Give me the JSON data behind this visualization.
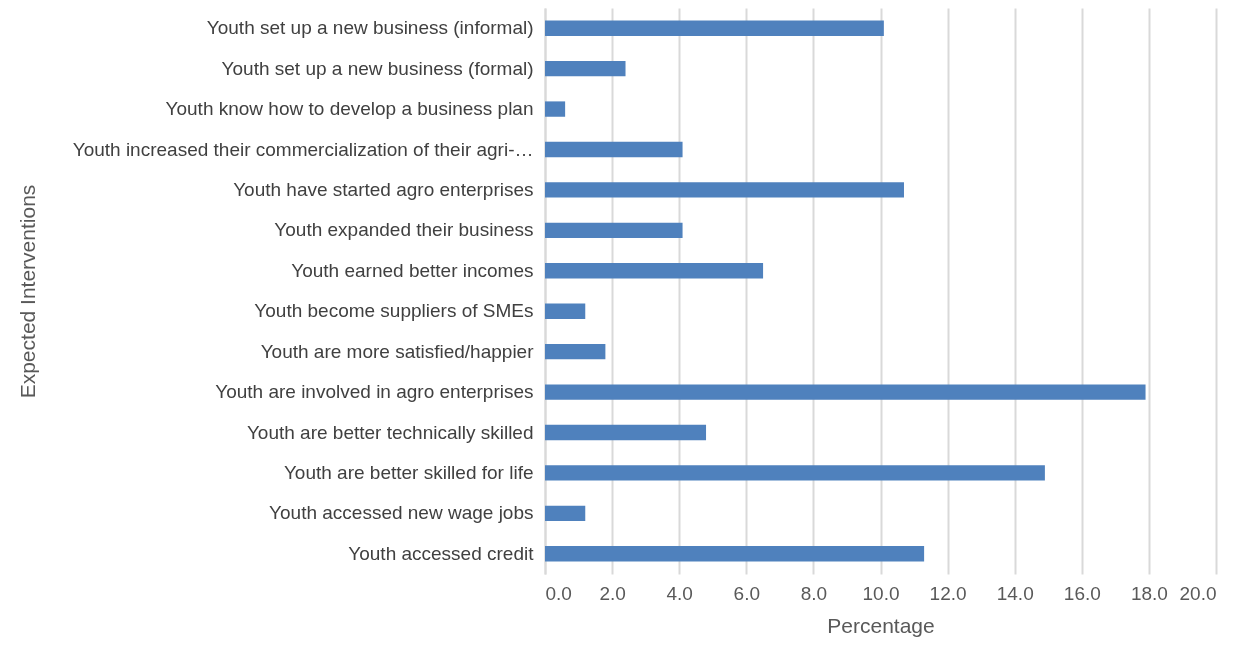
{
  "chart_data": {
    "type": "bar",
    "orientation": "horizontal",
    "xlabel": "Percentage",
    "ylabel": "Expected Interventions",
    "categories": [
      "Youth set up a new business (informal)",
      "Youth set up a new business (formal)",
      "Youth know how to develop a business plan",
      "Youth increased their commercialization of their agri-…",
      "Youth have started agro enterprises",
      "Youth expanded their business",
      "Youth earned better incomes",
      "Youth become suppliers of SMEs",
      "Youth are more satisfied/happier",
      "Youth are involved in agro enterprises",
      "Youth are better technically skilled",
      "Youth are better skilled for life",
      "Youth accessed new wage jobs",
      "Youth accessed credit"
    ],
    "values": [
      10.1,
      2.4,
      0.6,
      4.1,
      10.7,
      4.1,
      6.5,
      1.2,
      1.8,
      17.9,
      4.8,
      14.9,
      1.2,
      11.3
    ],
    "color": "#4f81bd",
    "xlim": [
      0,
      20
    ],
    "xticks": [
      {
        "value": 0,
        "label": "0.0"
      },
      {
        "value": 2,
        "label": "2.0"
      },
      {
        "value": 4,
        "label": "4.0"
      },
      {
        "value": 6,
        "label": "6.0"
      },
      {
        "value": 8,
        "label": "8.0"
      },
      {
        "value": 10,
        "label": "10.0"
      },
      {
        "value": 12,
        "label": "12.0"
      },
      {
        "value": 14,
        "label": "14.0"
      },
      {
        "value": 16,
        "label": "16.0"
      },
      {
        "value": 18,
        "label": "18.0"
      },
      {
        "value": 20,
        "label": "20.0"
      }
    ],
    "grid": "x"
  }
}
